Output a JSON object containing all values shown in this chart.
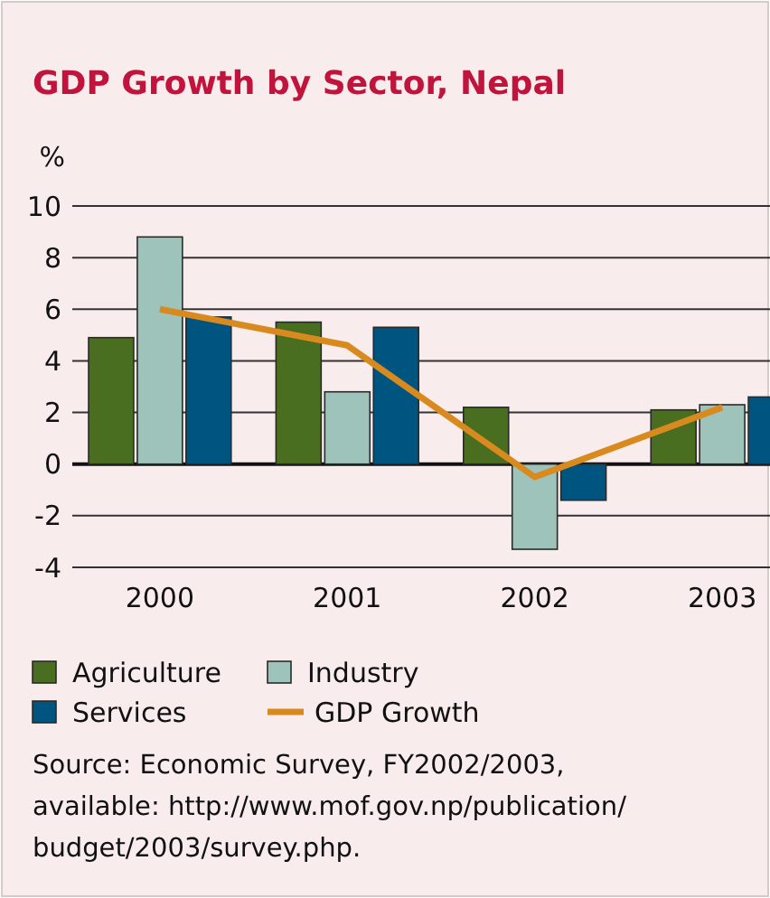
{
  "chart_data": {
    "type": "bar",
    "title": "GDP Growth by Sector, Nepal",
    "ylabel": "%",
    "categories": [
      "2000",
      "2001",
      "2002",
      "2003"
    ],
    "series": [
      {
        "name": "Agriculture",
        "color": "#4a6e1f",
        "values": [
          4.9,
          5.5,
          2.2,
          2.1
        ]
      },
      {
        "name": "Industry",
        "color": "#9dc3bb",
        "values": [
          8.8,
          2.8,
          -3.3,
          2.3
        ]
      },
      {
        "name": "Services",
        "color": "#005480",
        "values": [
          5.7,
          5.3,
          -1.4,
          2.6
        ]
      },
      {
        "name": "GDP Growth",
        "type": "line",
        "color": "#d98a1f",
        "values": [
          6.0,
          4.6,
          -0.5,
          2.2
        ]
      }
    ],
    "ylim": [
      -4,
      10
    ],
    "yticks": [
      -4,
      -2,
      0,
      2,
      4,
      6,
      8,
      10
    ],
    "grid": "y",
    "legend": "bottom",
    "annotations": [
      "Source: Economic Survey, FY2002/2003, available: http://www.mof.gov.np/publication/budget/2003/survey.php."
    ]
  }
}
